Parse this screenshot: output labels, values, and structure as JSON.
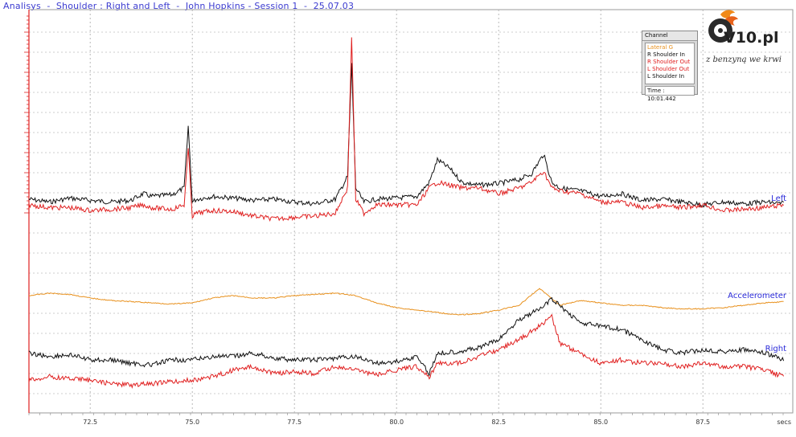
{
  "window": {
    "title": "Analisys  -  Shoulder : Right and Left  -  John Hopkins - Session 1  -  25.07.03"
  },
  "legend": {
    "header": "Channel",
    "items": [
      {
        "prefix": "",
        "label": "Lateral G",
        "color": "#e8901c"
      },
      {
        "prefix": "R",
        "label": " Shoulder In",
        "color": "#111111"
      },
      {
        "prefix": "R",
        "label": " Shoulder Out",
        "color": "#e02020"
      },
      {
        "prefix": "L",
        "label": " Shoulder Out",
        "color": "#e02020"
      },
      {
        "prefix": "L",
        "label": " Shoulder In",
        "color": "#111111"
      }
    ],
    "time": "Time : 10:01.442"
  },
  "logo": {
    "brand": "V10.pl",
    "slogan": "z benzyną we krwi"
  },
  "chart_data": {
    "type": "line",
    "xlabel": "secs",
    "x_ticks": [
      "72.5",
      "75.0",
      "77.5",
      "80.0",
      "82.5",
      "85.0",
      "87.5"
    ],
    "xlim": [
      71.0,
      89.7
    ],
    "grid": true,
    "group_labels": [
      "Left",
      "Accelerometer",
      "Right"
    ],
    "colors": {
      "black": "#111111",
      "red": "#e02020",
      "orange": "#e8901c"
    },
    "series": [
      {
        "group": "Left",
        "channel": "L Shoulder In",
        "color": "#111111",
        "x": [
          71.0,
          71.5,
          72.0,
          72.5,
          73.0,
          73.5,
          73.8,
          74.0,
          74.5,
          74.8,
          74.9,
          75.0,
          75.1,
          75.5,
          76.0,
          76.5,
          77.0,
          77.5,
          78.0,
          78.5,
          78.8,
          78.9,
          79.0,
          79.2,
          79.5,
          80.0,
          80.5,
          80.8,
          81.0,
          81.3,
          81.6,
          82.0,
          82.5,
          83.0,
          83.3,
          83.6,
          83.8,
          84.0,
          84.5,
          85.0,
          85.5,
          86.0,
          86.5,
          87.0,
          87.5,
          88.0,
          88.5,
          89.0,
          89.5
        ],
        "values": [
          0.1,
          0.05,
          0.12,
          0.08,
          0.05,
          0.08,
          0.2,
          0.15,
          0.18,
          0.3,
          1.4,
          0.05,
          0.1,
          0.15,
          0.12,
          0.08,
          0.1,
          0.05,
          0.02,
          0.1,
          0.5,
          2.5,
          0.3,
          0.05,
          0.1,
          0.12,
          0.15,
          0.4,
          0.8,
          0.65,
          0.4,
          0.35,
          0.38,
          0.45,
          0.55,
          0.9,
          0.4,
          0.3,
          0.25,
          0.15,
          0.2,
          0.08,
          0.1,
          0.05,
          0.0,
          0.05,
          0.02,
          0.05,
          0.02
        ]
      },
      {
        "group": "Left",
        "channel": "L Shoulder Out",
        "color": "#e02020",
        "x": [
          71.0,
          71.5,
          72.0,
          72.5,
          73.0,
          73.5,
          73.8,
          74.0,
          74.5,
          74.8,
          74.9,
          75.0,
          75.1,
          75.5,
          76.0,
          76.5,
          77.0,
          77.5,
          78.0,
          78.5,
          78.8,
          78.9,
          79.0,
          79.2,
          79.5,
          80.0,
          80.5,
          80.8,
          81.0,
          81.3,
          81.6,
          82.0,
          82.5,
          83.0,
          83.3,
          83.6,
          83.8,
          84.0,
          84.5,
          85.0,
          85.5,
          86.0,
          86.5,
          87.0,
          87.5,
          88.0,
          88.5,
          89.0,
          89.5
        ],
        "values": [
          0.0,
          -0.05,
          -0.05,
          -0.1,
          -0.08,
          -0.05,
          0.0,
          -0.05,
          -0.08,
          0.0,
          1.0,
          -0.2,
          -0.15,
          -0.1,
          -0.12,
          -0.2,
          -0.25,
          -0.22,
          -0.2,
          -0.15,
          0.3,
          3.0,
          0.1,
          -0.15,
          0.0,
          0.0,
          0.0,
          0.3,
          0.4,
          0.35,
          0.3,
          0.3,
          0.2,
          0.3,
          0.4,
          0.6,
          0.3,
          0.25,
          0.2,
          0.05,
          0.05,
          -0.05,
          -0.02,
          -0.05,
          0.0,
          -0.1,
          -0.08,
          -0.05,
          0.0
        ]
      },
      {
        "group": "Accelerometer",
        "channel": "Lateral G",
        "color": "#e8901c",
        "x": [
          71.0,
          71.5,
          72.0,
          72.5,
          73.0,
          73.5,
          74.0,
          74.5,
          75.0,
          75.5,
          76.0,
          76.5,
          77.0,
          77.5,
          78.0,
          78.5,
          79.0,
          79.5,
          80.0,
          80.5,
          81.0,
          81.5,
          82.0,
          82.5,
          83.0,
          83.5,
          84.0,
          84.5,
          85.0,
          85.5,
          86.0,
          86.5,
          87.0,
          87.5,
          88.0,
          88.5,
          89.0,
          89.5
        ],
        "values": [
          0.0,
          0.1,
          0.05,
          -0.1,
          -0.2,
          -0.25,
          -0.3,
          -0.35,
          -0.3,
          -0.1,
          0.0,
          -0.1,
          -0.1,
          0.0,
          0.05,
          0.1,
          0.0,
          -0.3,
          -0.5,
          -0.6,
          -0.7,
          -0.8,
          -0.75,
          -0.6,
          -0.4,
          0.3,
          -0.4,
          -0.2,
          -0.3,
          -0.4,
          -0.4,
          -0.5,
          -0.55,
          -0.55,
          -0.5,
          -0.4,
          -0.3,
          -0.25
        ]
      },
      {
        "group": "Right",
        "channel": "R Shoulder In",
        "color": "#111111",
        "x": [
          71.0,
          71.5,
          72.0,
          72.5,
          73.0,
          73.5,
          74.0,
          74.5,
          75.0,
          75.5,
          76.0,
          76.5,
          77.0,
          77.5,
          78.0,
          78.5,
          79.0,
          79.5,
          80.0,
          80.5,
          80.8,
          81.0,
          81.5,
          82.0,
          82.5,
          83.0,
          83.5,
          83.8,
          84.0,
          84.5,
          85.0,
          85.5,
          86.0,
          86.5,
          87.0,
          87.5,
          88.0,
          88.5,
          89.0,
          89.5
        ],
        "values": [
          0.2,
          0.1,
          0.15,
          0.0,
          0.0,
          -0.1,
          -0.15,
          0.0,
          0.0,
          0.1,
          0.1,
          0.2,
          0.05,
          0.0,
          0.0,
          0.05,
          0.1,
          -0.1,
          -0.05,
          0.1,
          -0.4,
          0.2,
          0.25,
          0.35,
          0.6,
          1.2,
          1.5,
          1.8,
          1.6,
          1.1,
          1.0,
          0.9,
          0.6,
          0.3,
          0.2,
          0.3,
          0.25,
          0.3,
          0.2,
          0.0
        ]
      },
      {
        "group": "Right",
        "channel": "R Shoulder Out",
        "color": "#e02020",
        "x": [
          71.0,
          71.5,
          72.0,
          72.5,
          73.0,
          73.5,
          74.0,
          74.5,
          75.0,
          75.5,
          76.0,
          76.5,
          77.0,
          77.5,
          78.0,
          78.5,
          79.0,
          79.5,
          80.0,
          80.5,
          80.8,
          81.0,
          81.5,
          82.0,
          82.5,
          83.0,
          83.5,
          83.8,
          84.0,
          84.5,
          85.0,
          85.5,
          86.0,
          86.5,
          87.0,
          87.5,
          88.0,
          88.5,
          89.0,
          89.5
        ],
        "values": [
          -0.6,
          -0.5,
          -0.55,
          -0.6,
          -0.7,
          -0.75,
          -0.7,
          -0.65,
          -0.6,
          -0.5,
          -0.3,
          -0.2,
          -0.4,
          -0.35,
          -0.4,
          -0.2,
          -0.3,
          -0.45,
          -0.3,
          -0.2,
          -0.5,
          -0.1,
          -0.1,
          0.1,
          0.3,
          0.6,
          1.0,
          1.3,
          0.5,
          0.2,
          -0.1,
          0.0,
          -0.1,
          -0.1,
          -0.2,
          -0.1,
          -0.2,
          -0.2,
          -0.3,
          -0.5
        ]
      }
    ]
  }
}
